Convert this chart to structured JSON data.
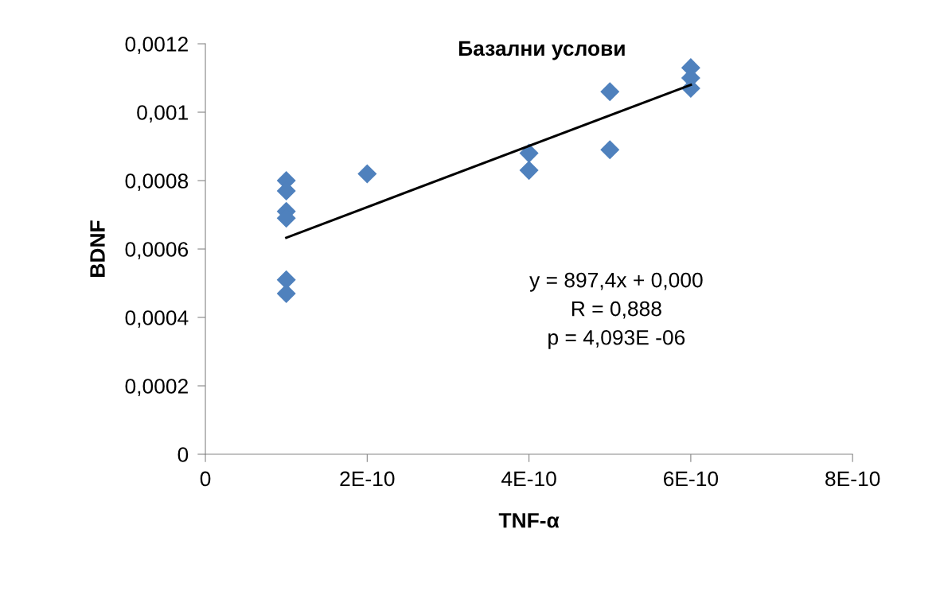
{
  "chart_data": {
    "type": "scatter",
    "title": "Базални услови",
    "xlabel": "TNF-α",
    "ylabel": "BDNF",
    "xlim": [
      0,
      8e-10
    ],
    "xticks": [
      0,
      {
        "value": 2e-10,
        "label": "2E-10"
      },
      {
        "value": 4e-10,
        "label": "4E-10"
      },
      {
        "value": 6e-10,
        "label": "6E-10"
      },
      {
        "value": 8e-10,
        "label": "8E-10"
      }
    ],
    "ylim": [
      0,
      0.0012
    ],
    "yticks": [
      0,
      {
        "value": 0.0002,
        "label": "0,0002"
      },
      {
        "value": 0.0004,
        "label": "0,0004"
      },
      {
        "value": 0.0006,
        "label": "0,0006"
      },
      {
        "value": 0.0008,
        "label": "0,0008"
      },
      {
        "value": 0.001,
        "label": "0,001"
      },
      {
        "value": 0.0012,
        "label": "0,0012"
      }
    ],
    "grid": false,
    "legend": false,
    "series": [
      {
        "color": "#4f81bd",
        "marker": "diamond",
        "x": [
          1e-10,
          1e-10,
          1e-10,
          1e-10,
          1e-10,
          1e-10,
          2e-10,
          4e-10,
          4e-10,
          5e-10,
          5e-10,
          6e-10,
          6e-10,
          6e-10
        ],
        "values": [
          0.0008,
          0.00077,
          0.00071,
          0.00069,
          0.00051,
          0.00047,
          0.00082,
          0.00088,
          0.00083,
          0.00106,
          0.00089,
          0.00113,
          0.0011,
          0.00107
        ]
      },
      {
        "type": "line",
        "color": "#000000",
        "marker": "none",
        "line_style": "solid",
        "x": [
          1e-10,
          6e-10
        ],
        "values": [
          0.000633,
          0.00108
        ]
      }
    ],
    "annotations": [
      "y = 897,4x + 0,000\nR = 0,888\np = 4,093E -06"
    ]
  }
}
